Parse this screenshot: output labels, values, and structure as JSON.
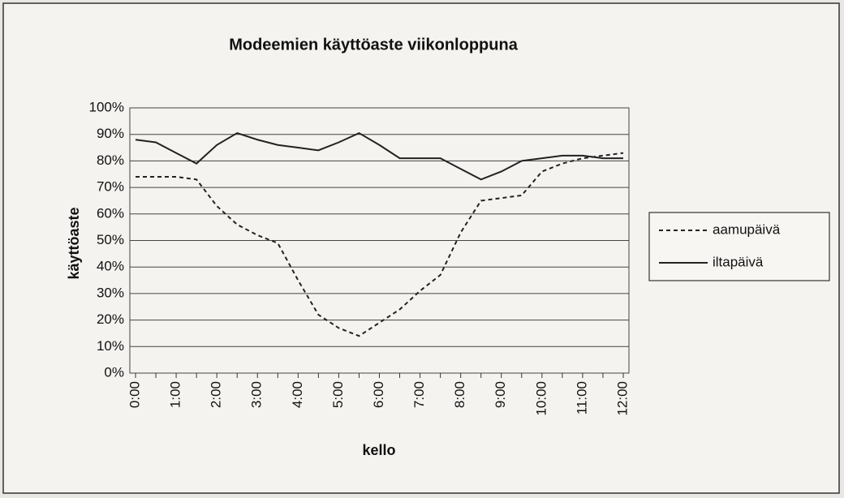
{
  "chart_data": {
    "type": "line",
    "title": "Modeemien käyttöaste viikonloppuna",
    "x_label": "kello",
    "y_label": "käyttöaste",
    "categories": [
      "0:00",
      null,
      "1:00",
      null,
      "2:00",
      null,
      "3:00",
      null,
      "4:00",
      null,
      "5:00",
      null,
      "6:00",
      null,
      "7:00",
      null,
      "8:00",
      null,
      "9:00",
      null,
      "10:00",
      null,
      "11:00",
      null,
      "12:00"
    ],
    "series": [
      {
        "name": "aamupäivä",
        "color": "#222222",
        "line_style": "dashed",
        "values": [
          74,
          74,
          74,
          73,
          63,
          56,
          52,
          49,
          35,
          22,
          17,
          14,
          19,
          24,
          31,
          37,
          53,
          65,
          66,
          67,
          76,
          79,
          81,
          82,
          83
        ]
      },
      {
        "name": "iltapäivä",
        "color": "#222222",
        "line_style": "solid",
        "values": [
          88,
          87,
          83,
          79,
          86,
          90.5,
          88,
          86,
          85,
          84,
          87,
          90.5,
          86,
          81,
          81,
          81,
          77,
          73,
          76,
          80,
          81,
          82,
          82,
          81,
          81
        ]
      }
    ],
    "ylim": [
      0,
      100
    ],
    "yticks": [
      {
        "value": 0,
        "label": "0%"
      },
      {
        "value": 10,
        "label": "10%"
      },
      {
        "value": 20,
        "label": "20%"
      },
      {
        "value": 30,
        "label": "30%"
      },
      {
        "value": 40,
        "label": "40%"
      },
      {
        "value": 50,
        "label": "50%"
      },
      {
        "value": 60,
        "label": "60%"
      },
      {
        "value": 70,
        "label": "70%"
      },
      {
        "value": 80,
        "label": "80%"
      },
      {
        "value": 90,
        "label": "90%"
      },
      {
        "value": 100,
        "label": "100%"
      }
    ],
    "grid": true,
    "legend": "right"
  }
}
